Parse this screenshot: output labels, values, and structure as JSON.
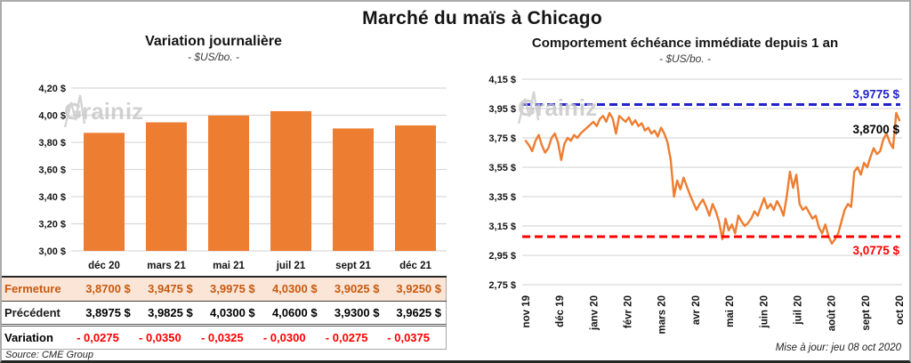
{
  "page": {
    "title": "Marché du maïs à Chicago",
    "source": "Source: CME Group",
    "updated": "Mise à jour: jeu 08 oct 2020",
    "watermark": "GrainWiz"
  },
  "colors": {
    "series_orange": "#ED7D31",
    "high_ref_blue": "#2222CC",
    "low_ref_red": "#FF0000",
    "variation_red": "#FF0000",
    "fermeture_bg": "#FBE5D6",
    "fermeture_text": "#C55A11",
    "gridline": "#D9D9D9"
  },
  "table": {
    "columns": [
      "déc 20",
      "mars 21",
      "mai 21",
      "juil 21",
      "sept 21",
      "déc 21"
    ],
    "rows": {
      "fermeture": {
        "label": "Fermeture",
        "values": [
          "3,8700 $",
          "3,9475 $",
          "3,9975 $",
          "4,0300 $",
          "3,9025 $",
          "3,9250 $"
        ]
      },
      "precedent": {
        "label": "Précédent",
        "values": [
          "3,8975 $",
          "3,9825 $",
          "4,0300 $",
          "4,0600 $",
          "3,9300 $",
          "3,9625 $"
        ]
      },
      "variation": {
        "label": "Variation",
        "values": [
          "- 0,0275",
          "- 0,0350",
          "- 0,0325",
          "- 0,0300",
          "- 0,0275",
          "- 0,0375"
        ]
      }
    }
  },
  "chart_data": [
    {
      "type": "bar",
      "title": "Variation journalière",
      "subtitle": "- $US/bo. -",
      "categories": [
        "déc 20",
        "mars 21",
        "mai 21",
        "juil 21",
        "sept 21",
        "déc 21"
      ],
      "values": [
        3.87,
        3.9475,
        3.9975,
        4.03,
        3.9025,
        3.925
      ],
      "bar_color": "#ED7D31",
      "ylim": [
        3.0,
        4.2
      ],
      "yticks": [
        3.0,
        3.2,
        3.4,
        3.6,
        3.8,
        4.0,
        4.2
      ],
      "ytick_labels": [
        "3,00 $",
        "3,20 $",
        "3,40 $",
        "3,60 $",
        "3,80 $",
        "4,00 $",
        "4,20 $"
      ],
      "grid": true
    },
    {
      "type": "line",
      "title": "Comportement échéance immédiate depuis 1 an",
      "subtitle": "- $US/bo. -",
      "x_tick_labels": [
        "nov 19",
        "déc 19",
        "janv 20",
        "févr 20",
        "mars 20",
        "avr 20",
        "mai 20",
        "juin 20",
        "juil 20",
        "août 20",
        "sept 20",
        "oct 20"
      ],
      "ylim": [
        2.75,
        4.15
      ],
      "yticks": [
        2.75,
        2.95,
        3.15,
        3.35,
        3.55,
        3.75,
        3.95,
        4.15
      ],
      "ytick_labels": [
        "2,75 $",
        "2,95 $",
        "3,15 $",
        "3,35 $",
        "3,55 $",
        "3,75 $",
        "3,95 $",
        "4,15 $"
      ],
      "grid": true,
      "series": [
        {
          "name": "échéance immédiate",
          "color": "#ED7D31",
          "values": [
            3.73,
            3.7,
            3.66,
            3.73,
            3.77,
            3.7,
            3.65,
            3.68,
            3.75,
            3.78,
            3.72,
            3.6,
            3.71,
            3.75,
            3.73,
            3.77,
            3.75,
            3.78,
            3.8,
            3.82,
            3.84,
            3.86,
            3.83,
            3.88,
            3.9,
            3.86,
            3.92,
            3.88,
            3.78,
            3.9,
            3.88,
            3.86,
            3.89,
            3.84,
            3.87,
            3.83,
            3.85,
            3.8,
            3.82,
            3.78,
            3.8,
            3.76,
            3.82,
            3.78,
            3.72,
            3.6,
            3.35,
            3.46,
            3.4,
            3.48,
            3.42,
            3.36,
            3.31,
            3.26,
            3.3,
            3.33,
            3.28,
            3.22,
            3.3,
            3.25,
            3.18,
            3.06,
            3.2,
            3.12,
            3.16,
            3.1,
            3.22,
            3.18,
            3.15,
            3.17,
            3.2,
            3.25,
            3.22,
            3.28,
            3.34,
            3.27,
            3.3,
            3.26,
            3.32,
            3.28,
            3.22,
            3.35,
            3.52,
            3.41,
            3.5,
            3.3,
            3.26,
            3.28,
            3.24,
            3.2,
            3.22,
            3.14,
            3.1,
            3.16,
            3.08,
            3.03,
            3.06,
            3.1,
            3.18,
            3.26,
            3.3,
            3.28,
            3.52,
            3.55,
            3.5,
            3.58,
            3.55,
            3.62,
            3.68,
            3.64,
            3.66,
            3.74,
            3.78,
            3.72,
            3.68,
            3.92,
            3.87
          ]
        }
      ],
      "annotations": {
        "high_line": {
          "value": 3.9775,
          "label": "3,9775 $",
          "color": "#2222CC",
          "style": "dashed"
        },
        "low_line": {
          "value": 3.0775,
          "label": "3,0775 $",
          "color": "#FF0000",
          "style": "dashed"
        },
        "last_value": {
          "value": 3.87,
          "label": "3,8700 $",
          "color": "#000000"
        }
      }
    }
  ]
}
